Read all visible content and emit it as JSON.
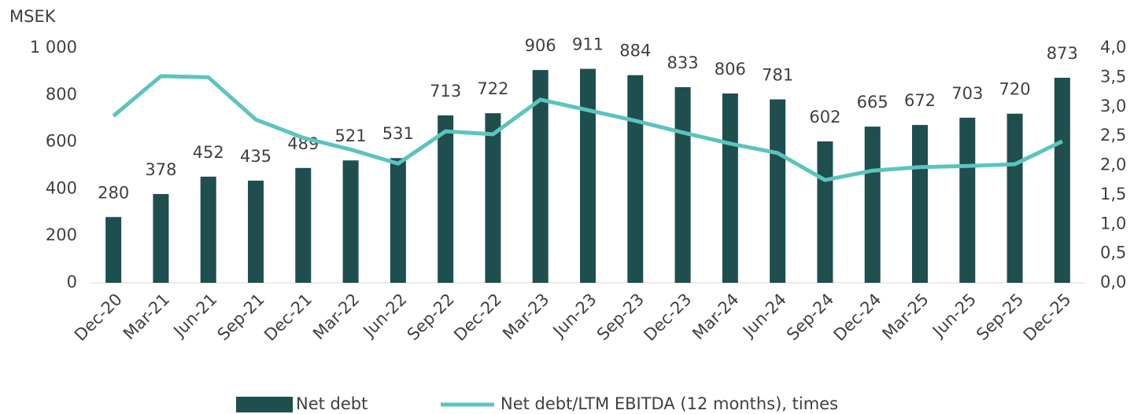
{
  "chart_data": {
    "type": "bar_line",
    "y_axis_label": "MSEK",
    "categories": [
      "Dec-20",
      "Mar-21",
      "Jun-21",
      "Sep-21",
      "Dec-21",
      "Mar-22",
      "Jun-22",
      "Sep-22",
      "Dec-22",
      "Mar-23",
      "Jun-23",
      "Sep-23",
      "Dec-23",
      "Mar-24",
      "Jun-24",
      "Sep-24",
      "Dec-24",
      "Mar-25",
      "Jun-25",
      "Sep-25",
      "Dec-25"
    ],
    "series": [
      {
        "name": "Net debt",
        "type": "bar",
        "color": "#1f4e4f",
        "values": [
          280,
          378,
          452,
          435,
          489,
          521,
          531,
          713,
          722,
          906,
          911,
          884,
          833,
          806,
          781,
          602,
          665,
          672,
          703,
          720,
          873
        ]
      },
      {
        "name": "Net debt/LTM EBITDA (12 months), times",
        "type": "line",
        "axis": "y2",
        "color": "#5bc4bd",
        "values": [
          2.84,
          3.52,
          3.5,
          2.78,
          2.47,
          2.27,
          2.03,
          2.58,
          2.53,
          3.12,
          2.94,
          2.76,
          2.56,
          2.37,
          2.21,
          1.75,
          1.91,
          1.97,
          1.99,
          2.02,
          2.41
        ]
      }
    ],
    "ylim": [
      0,
      1000
    ],
    "yticks": [
      0,
      200,
      400,
      600,
      800,
      {
        "value": 1000,
        "label": "1 000"
      }
    ],
    "y2lim": [
      0,
      4
    ],
    "y2ticks": [
      {
        "value": 0,
        "label": "0,0"
      },
      {
        "value": 0.5,
        "label": "0,5"
      },
      {
        "value": 1,
        "label": "1,0"
      },
      {
        "value": 1.5,
        "label": "1,5"
      },
      {
        "value": 2,
        "label": "2,0"
      },
      {
        "value": 2.5,
        "label": "2,5"
      },
      {
        "value": 3,
        "label": "3,0"
      },
      {
        "value": 3.5,
        "label": "3,5"
      },
      {
        "value": 4,
        "label": "4,0"
      }
    ],
    "legend": "bottom"
  }
}
